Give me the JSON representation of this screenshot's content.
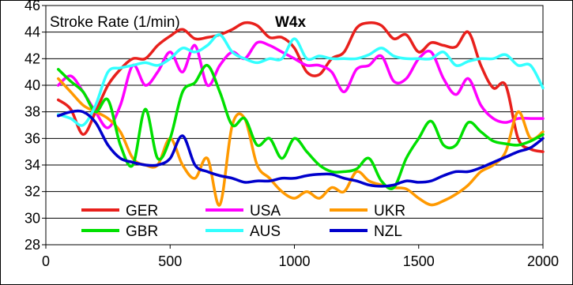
{
  "chart_data": {
    "type": "line",
    "title": "Stroke Rate (1/min)",
    "subtitle": "W4x",
    "xlim": [
      0,
      2000
    ],
    "ylim": [
      28,
      46
    ],
    "xticks": [
      0,
      500,
      1000,
      1500,
      2000
    ],
    "yticks": [
      28,
      30,
      32,
      34,
      36,
      38,
      40,
      42,
      44,
      46
    ],
    "grid": "horizontal",
    "legend_position": "bottom-left inside plot",
    "series": [
      {
        "name": "GER",
        "color": "#e8201c",
        "x": [
          50,
          100,
          150,
          200,
          250,
          300,
          350,
          400,
          450,
          500,
          550,
          600,
          650,
          700,
          750,
          800,
          850,
          900,
          950,
          1000,
          1050,
          1100,
          1150,
          1200,
          1250,
          1300,
          1350,
          1400,
          1450,
          1500,
          1550,
          1600,
          1650,
          1700,
          1750,
          1800,
          1850,
          1900,
          1950,
          2000
        ],
        "values": [
          38.9,
          38.2,
          36.3,
          38.0,
          40.0,
          41.2,
          42.0,
          42.0,
          43.0,
          43.7,
          44.2,
          43.5,
          43.6,
          43.8,
          44.2,
          44.7,
          44.5,
          43.6,
          43.6,
          42.8,
          41.0,
          40.8,
          42.0,
          42.5,
          44.3,
          44.7,
          44.5,
          43.5,
          43.8,
          42.5,
          43.2,
          43.0,
          42.9,
          44.0,
          41.5,
          39.8,
          40.0,
          36.0,
          35.2,
          35.0
        ]
      },
      {
        "name": "USA",
        "color": "#ff00ff",
        "x": [
          50,
          100,
          150,
          200,
          250,
          300,
          350,
          400,
          450,
          500,
          550,
          600,
          650,
          700,
          750,
          800,
          850,
          900,
          950,
          1000,
          1050,
          1100,
          1150,
          1200,
          1250,
          1300,
          1350,
          1400,
          1450,
          1500,
          1550,
          1600,
          1650,
          1700,
          1750,
          1800,
          1850,
          1900,
          1950,
          2000
        ],
        "values": [
          40.0,
          40.7,
          39.5,
          38.0,
          36.8,
          38.5,
          41.5,
          40.0,
          41.0,
          42.5,
          41.0,
          43.0,
          40.0,
          41.5,
          42.5,
          42.0,
          43.2,
          43.0,
          42.5,
          42.0,
          41.5,
          41.5,
          41.0,
          39.5,
          41.2,
          41.5,
          42.2,
          40.3,
          40.5,
          42.0,
          42.5,
          40.5,
          39.3,
          40.5,
          38.5,
          37.5,
          37.2,
          37.5,
          37.5,
          37.5
        ]
      },
      {
        "name": "UKR",
        "color": "#ff9900",
        "x": [
          50,
          100,
          150,
          200,
          250,
          300,
          350,
          400,
          450,
          500,
          550,
          600,
          650,
          700,
          750,
          800,
          850,
          900,
          950,
          1000,
          1050,
          1100,
          1150,
          1200,
          1250,
          1300,
          1350,
          1400,
          1450,
          1500,
          1550,
          1600,
          1650,
          1700,
          1750,
          1800,
          1850,
          1900,
          1950,
          2000
        ],
        "values": [
          40.5,
          39.5,
          38.5,
          38.0,
          37.5,
          36.5,
          34.5,
          34.0,
          34.0,
          36.0,
          34.0,
          33.0,
          34.5,
          31.0,
          37.0,
          37.5,
          34.0,
          33.0,
          32.0,
          31.5,
          32.0,
          31.5,
          32.3,
          32.0,
          33.5,
          32.8,
          32.5,
          32.3,
          32.2,
          31.5,
          31.0,
          31.3,
          31.8,
          32.5,
          33.5,
          34.0,
          35.0,
          38.0,
          36.0,
          36.5
        ]
      },
      {
        "name": "GBR",
        "color": "#00e000",
        "x": [
          50,
          100,
          150,
          200,
          250,
          300,
          350,
          400,
          450,
          500,
          550,
          600,
          650,
          700,
          750,
          800,
          850,
          900,
          950,
          1000,
          1050,
          1100,
          1150,
          1200,
          1250,
          1300,
          1350,
          1400,
          1450,
          1500,
          1550,
          1600,
          1650,
          1700,
          1750,
          1800,
          1850,
          1900,
          1950,
          2000
        ],
        "values": [
          41.2,
          40.3,
          39.5,
          38.0,
          38.9,
          35.5,
          34.0,
          38.2,
          34.5,
          36.0,
          39.5,
          40.2,
          41.5,
          39.5,
          37.0,
          37.5,
          35.5,
          36.0,
          34.5,
          36.0,
          35.0,
          34.0,
          33.5,
          33.5,
          33.7,
          34.5,
          32.8,
          32.3,
          34.5,
          36.0,
          37.3,
          35.5,
          35.5,
          37.2,
          36.5,
          35.8,
          35.6,
          35.5,
          35.8,
          36.3
        ]
      },
      {
        "name": "AUS",
        "color": "#33ffff",
        "x": [
          50,
          100,
          150,
          200,
          250,
          300,
          350,
          400,
          450,
          500,
          550,
          600,
          650,
          700,
          750,
          800,
          850,
          900,
          950,
          1000,
          1050,
          1100,
          1150,
          1200,
          1250,
          1300,
          1350,
          1400,
          1450,
          1500,
          1550,
          1600,
          1650,
          1700,
          1750,
          1800,
          1850,
          1900,
          1950,
          2000
        ],
        "values": [
          37.8,
          37.5,
          37.0,
          38.5,
          41.0,
          41.3,
          41.5,
          41.7,
          41.5,
          42.0,
          42.8,
          42.5,
          43.0,
          43.8,
          42.5,
          42.0,
          41.7,
          42.0,
          42.0,
          43.5,
          42.0,
          42.2,
          42.0,
          42.0,
          42.0,
          42.3,
          42.8,
          42.2,
          42.0,
          42.0,
          42.0,
          42.5,
          41.5,
          41.8,
          42.0,
          42.0,
          42.3,
          41.5,
          41.5,
          39.8
        ]
      },
      {
        "name": "NZL",
        "color": "#0000cc",
        "x": [
          50,
          100,
          150,
          200,
          250,
          300,
          350,
          400,
          450,
          500,
          550,
          600,
          650,
          700,
          750,
          800,
          850,
          900,
          950,
          1000,
          1050,
          1100,
          1150,
          1200,
          1250,
          1300,
          1350,
          1400,
          1450,
          1500,
          1550,
          1600,
          1650,
          1700,
          1750,
          1800,
          1850,
          1900,
          1950,
          2000
        ],
        "values": [
          37.7,
          38.0,
          38.0,
          37.2,
          35.5,
          34.5,
          34.2,
          34.0,
          34.0,
          34.5,
          36.2,
          34.0,
          33.5,
          33.2,
          33.0,
          32.7,
          32.8,
          32.8,
          33.0,
          33.0,
          33.2,
          33.3,
          33.3,
          33.0,
          32.8,
          32.5,
          32.4,
          32.5,
          32.8,
          32.7,
          32.8,
          33.2,
          33.5,
          33.5,
          33.8,
          34.2,
          34.6,
          35.0,
          35.3,
          36.0
        ]
      }
    ]
  }
}
